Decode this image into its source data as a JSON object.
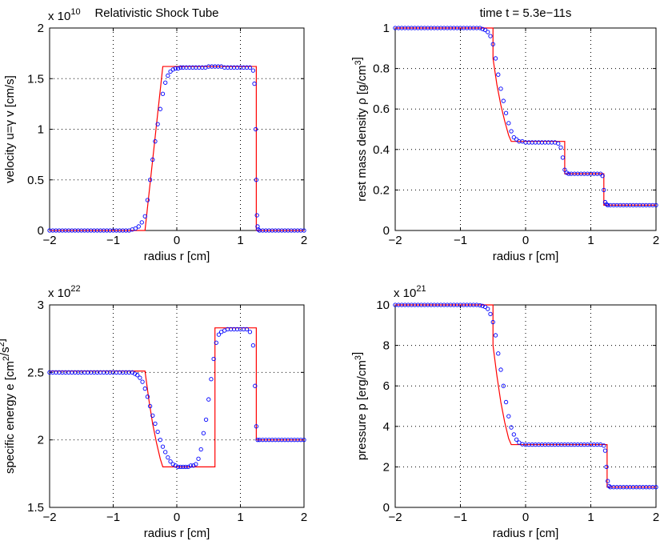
{
  "figure_title_left": "Relativistic Shock Tube",
  "figure_title_right": "time t = 5.3e−11s",
  "colors": {
    "analytic": "#ff0000",
    "numeric": "#0000ff",
    "axes": "#000000",
    "grid": "#000000",
    "background": "#ffffff"
  },
  "chart_data": [
    {
      "id": "velocity",
      "type": "line+scatter",
      "title": "Relativistic Shock Tube",
      "xlabel": "radius r [cm]",
      "ylabel": "velocity u=γ v [cm/s]",
      "xlim": [
        -2,
        2
      ],
      "ylim": [
        0,
        2
      ],
      "xticks": [
        -2,
        -1,
        0,
        1,
        2
      ],
      "xtick_labels": [
        "−2",
        "−1",
        "0",
        "1",
        "2"
      ],
      "yticks": [
        0,
        0.5,
        1,
        1.5,
        2
      ],
      "ytick_labels": [
        "0",
        "0.5",
        "1",
        "1.5",
        "2"
      ],
      "multiplier": {
        "base": "x 10",
        "exp": "10"
      },
      "grid": true,
      "series": [
        {
          "name": "analytic",
          "style": "line",
          "x": [
            -2,
            -0.5,
            -0.22,
            1.25,
            1.25,
            2
          ],
          "y": [
            0,
            0,
            1.62,
            1.62,
            0,
            0
          ]
        },
        {
          "name": "numeric",
          "style": "circle",
          "x": [
            -2,
            -1.95,
            -1.9,
            -1.85,
            -1.8,
            -1.75,
            -1.7,
            -1.65,
            -1.6,
            -1.55,
            -1.5,
            -1.45,
            -1.4,
            -1.35,
            -1.3,
            -1.25,
            -1.2,
            -1.15,
            -1.1,
            -1.05,
            -1.0,
            -0.95,
            -0.9,
            -0.85,
            -0.8,
            -0.75,
            -0.7,
            -0.65,
            -0.6,
            -0.55,
            -0.5,
            -0.46,
            -0.42,
            -0.38,
            -0.34,
            -0.3,
            -0.26,
            -0.22,
            -0.18,
            -0.14,
            -0.1,
            -0.06,
            -0.02,
            0.02,
            0.06,
            0.1,
            0.15,
            0.2,
            0.25,
            0.3,
            0.35,
            0.4,
            0.45,
            0.5,
            0.55,
            0.6,
            0.65,
            0.7,
            0.75,
            0.8,
            0.85,
            0.9,
            0.95,
            1.0,
            1.05,
            1.1,
            1.15,
            1.2,
            1.22,
            1.24,
            1.25,
            1.26,
            1.27,
            1.28,
            1.3,
            1.35,
            1.4,
            1.45,
            1.5,
            1.55,
            1.6,
            1.65,
            1.7,
            1.75,
            1.8,
            1.85,
            1.9,
            1.95,
            2.0
          ],
          "y": [
            0,
            0,
            0,
            0,
            0,
            0,
            0,
            0,
            0,
            0,
            0,
            0,
            0,
            0,
            0,
            0,
            0,
            0,
            0,
            0,
            0,
            0,
            0,
            0,
            0,
            0,
            0.01,
            0.02,
            0.04,
            0.08,
            0.14,
            0.3,
            0.5,
            0.7,
            0.88,
            1.05,
            1.2,
            1.35,
            1.46,
            1.53,
            1.57,
            1.59,
            1.6,
            1.6,
            1.61,
            1.61,
            1.61,
            1.61,
            1.61,
            1.61,
            1.61,
            1.61,
            1.61,
            1.62,
            1.62,
            1.62,
            1.62,
            1.62,
            1.61,
            1.61,
            1.61,
            1.61,
            1.61,
            1.61,
            1.61,
            1.61,
            1.61,
            1.58,
            1.45,
            1.0,
            0.5,
            0.15,
            0.04,
            0.01,
            0,
            0,
            0,
            0,
            0,
            0,
            0,
            0,
            0,
            0,
            0,
            0,
            0,
            0,
            0
          ]
        }
      ]
    },
    {
      "id": "density",
      "type": "line+scatter",
      "title": "time t = 5.3e−11s",
      "xlabel": "radius r [cm]",
      "ylabel": "rest mass density ρ [g/cm³]",
      "xlim": [
        -2,
        2
      ],
      "ylim": [
        0,
        1
      ],
      "xticks": [
        -2,
        -1,
        0,
        1,
        2
      ],
      "xtick_labels": [
        "−2",
        "−1",
        "0",
        "1",
        "2"
      ],
      "yticks": [
        0,
        0.2,
        0.4,
        0.6,
        0.8,
        1
      ],
      "ytick_labels": [
        "0",
        "0.2",
        "0.4",
        "0.6",
        "0.8",
        "1"
      ],
      "grid": true,
      "series": [
        {
          "name": "analytic",
          "style": "line",
          "x": [
            -2,
            -0.5,
            -0.5,
            -0.44,
            -0.38,
            -0.32,
            -0.26,
            -0.22,
            0.6,
            0.6,
            1.2,
            1.2,
            2
          ],
          "y": [
            1,
            1,
            0.85,
            0.72,
            0.62,
            0.54,
            0.47,
            0.44,
            0.44,
            0.28,
            0.28,
            0.125,
            0.125
          ]
        },
        {
          "name": "numeric",
          "style": "circle",
          "x": [
            -2,
            -1.95,
            -1.9,
            -1.85,
            -1.8,
            -1.75,
            -1.7,
            -1.65,
            -1.6,
            -1.55,
            -1.5,
            -1.45,
            -1.4,
            -1.35,
            -1.3,
            -1.25,
            -1.2,
            -1.15,
            -1.1,
            -1.05,
            -1.0,
            -0.95,
            -0.9,
            -0.85,
            -0.8,
            -0.75,
            -0.7,
            -0.66,
            -0.62,
            -0.58,
            -0.54,
            -0.5,
            -0.46,
            -0.42,
            -0.38,
            -0.34,
            -0.3,
            -0.26,
            -0.22,
            -0.18,
            -0.14,
            -0.1,
            -0.05,
            0.0,
            0.05,
            0.1,
            0.15,
            0.2,
            0.25,
            0.3,
            0.35,
            0.4,
            0.45,
            0.5,
            0.54,
            0.57,
            0.6,
            0.63,
            0.66,
            0.7,
            0.75,
            0.8,
            0.85,
            0.9,
            0.95,
            1.0,
            1.05,
            1.1,
            1.15,
            1.18,
            1.2,
            1.22,
            1.24,
            1.26,
            1.3,
            1.35,
            1.4,
            1.45,
            1.5,
            1.55,
            1.6,
            1.65,
            1.7,
            1.75,
            1.8,
            1.85,
            1.9,
            1.95,
            2.0
          ],
          "y": [
            1,
            1,
            1,
            1,
            1,
            1,
            1,
            1,
            1,
            1,
            1,
            1,
            1,
            1,
            1,
            1,
            1,
            1,
            1,
            1,
            1,
            1,
            1,
            1,
            1,
            1,
            1,
            0.995,
            0.99,
            0.98,
            0.96,
            0.92,
            0.85,
            0.77,
            0.7,
            0.64,
            0.58,
            0.53,
            0.49,
            0.46,
            0.45,
            0.44,
            0.44,
            0.435,
            0.435,
            0.435,
            0.435,
            0.435,
            0.435,
            0.435,
            0.435,
            0.435,
            0.435,
            0.43,
            0.41,
            0.36,
            0.3,
            0.285,
            0.28,
            0.28,
            0.28,
            0.28,
            0.28,
            0.28,
            0.28,
            0.28,
            0.28,
            0.28,
            0.28,
            0.27,
            0.2,
            0.14,
            0.13,
            0.125,
            0.125,
            0.125,
            0.125,
            0.125,
            0.125,
            0.125,
            0.125,
            0.125,
            0.125,
            0.125,
            0.125,
            0.125,
            0.125,
            0.125,
            0.125
          ]
        }
      ]
    },
    {
      "id": "energy",
      "type": "line+scatter",
      "title": "",
      "xlabel": "radius r [cm]",
      "ylabel": "specific energy e [cm²/s²]",
      "xlim": [
        -2,
        2
      ],
      "ylim": [
        1.5,
        3
      ],
      "xticks": [
        -2,
        -1,
        0,
        1,
        2
      ],
      "xtick_labels": [
        "−2",
        "−1",
        "0",
        "1",
        "2"
      ],
      "yticks": [
        1.5,
        2,
        2.5,
        3
      ],
      "ytick_labels": [
        "1.5",
        "2",
        "2.5",
        "3"
      ],
      "multiplier": {
        "base": "x 10",
        "exp": "22"
      },
      "grid": true,
      "series": [
        {
          "name": "analytic",
          "style": "line",
          "x": [
            -2,
            -0.5,
            -0.44,
            -0.38,
            -0.32,
            -0.26,
            -0.22,
            0.6,
            0.6,
            1.25,
            1.25,
            2
          ],
          "y": [
            2.51,
            2.51,
            2.3,
            2.12,
            1.98,
            1.86,
            1.8,
            1.8,
            2.83,
            2.83,
            2.0,
            2.0
          ]
        },
        {
          "name": "numeric",
          "style": "circle",
          "x": [
            -2,
            -1.95,
            -1.9,
            -1.85,
            -1.8,
            -1.75,
            -1.7,
            -1.65,
            -1.6,
            -1.55,
            -1.5,
            -1.45,
            -1.4,
            -1.35,
            -1.3,
            -1.25,
            -1.2,
            -1.15,
            -1.1,
            -1.05,
            -1.0,
            -0.95,
            -0.9,
            -0.85,
            -0.8,
            -0.75,
            -0.7,
            -0.66,
            -0.62,
            -0.58,
            -0.54,
            -0.5,
            -0.46,
            -0.42,
            -0.38,
            -0.34,
            -0.3,
            -0.26,
            -0.22,
            -0.18,
            -0.14,
            -0.1,
            -0.06,
            -0.02,
            0.02,
            0.06,
            0.1,
            0.14,
            0.18,
            0.22,
            0.26,
            0.3,
            0.34,
            0.38,
            0.42,
            0.46,
            0.5,
            0.54,
            0.58,
            0.62,
            0.66,
            0.7,
            0.75,
            0.8,
            0.85,
            0.9,
            0.95,
            1.0,
            1.05,
            1.1,
            1.15,
            1.2,
            1.23,
            1.25,
            1.27,
            1.3,
            1.35,
            1.4,
            1.45,
            1.5,
            1.55,
            1.6,
            1.65,
            1.7,
            1.75,
            1.8,
            1.85,
            1.9,
            1.95,
            2.0
          ],
          "y": [
            2.5,
            2.5,
            2.5,
            2.5,
            2.5,
            2.5,
            2.5,
            2.5,
            2.5,
            2.5,
            2.5,
            2.5,
            2.5,
            2.5,
            2.5,
            2.5,
            2.5,
            2.5,
            2.5,
            2.5,
            2.5,
            2.5,
            2.5,
            2.5,
            2.5,
            2.5,
            2.5,
            2.49,
            2.48,
            2.46,
            2.43,
            2.38,
            2.32,
            2.25,
            2.18,
            2.12,
            2.06,
            2.0,
            1.95,
            1.91,
            1.87,
            1.84,
            1.82,
            1.81,
            1.8,
            1.8,
            1.8,
            1.8,
            1.8,
            1.81,
            1.81,
            1.82,
            1.86,
            1.93,
            2.05,
            2.15,
            2.3,
            2.45,
            2.6,
            2.72,
            2.78,
            2.8,
            2.81,
            2.82,
            2.82,
            2.82,
            2.82,
            2.82,
            2.82,
            2.82,
            2.8,
            2.7,
            2.4,
            2.1,
            2.0,
            2.0,
            2.0,
            2.0,
            2.0,
            2.0,
            2.0,
            2.0,
            2.0,
            2.0,
            2.0,
            2.0,
            2.0,
            2.0,
            2.0,
            2.0
          ]
        }
      ]
    },
    {
      "id": "pressure",
      "type": "line+scatter",
      "title": "",
      "xlabel": "radius r [cm]",
      "ylabel": "pressure p [erg/cm³]",
      "xlim": [
        -2,
        2
      ],
      "ylim": [
        0,
        10
      ],
      "xticks": [
        -2,
        -1,
        0,
        1,
        2
      ],
      "xtick_labels": [
        "−2",
        "−1",
        "0",
        "1",
        "2"
      ],
      "yticks": [
        0,
        2,
        4,
        6,
        8,
        10
      ],
      "ytick_labels": [
        "0",
        "2",
        "4",
        "6",
        "8",
        "10"
      ],
      "multiplier": {
        "base": "x 10",
        "exp": "21"
      },
      "grid": true,
      "series": [
        {
          "name": "analytic",
          "style": "line",
          "x": [
            -2,
            -0.5,
            -0.5,
            -0.44,
            -0.38,
            -0.32,
            -0.26,
            -0.22,
            1.25,
            1.25,
            2
          ],
          "y": [
            10,
            10,
            8.0,
            6.5,
            5.2,
            4.2,
            3.4,
            3.1,
            3.1,
            1.0,
            1.0
          ]
        },
        {
          "name": "numeric",
          "style": "circle",
          "x": [
            -2,
            -1.95,
            -1.9,
            -1.85,
            -1.8,
            -1.75,
            -1.7,
            -1.65,
            -1.6,
            -1.55,
            -1.5,
            -1.45,
            -1.4,
            -1.35,
            -1.3,
            -1.25,
            -1.2,
            -1.15,
            -1.1,
            -1.05,
            -1.0,
            -0.95,
            -0.9,
            -0.85,
            -0.8,
            -0.75,
            -0.7,
            -0.66,
            -0.62,
            -0.58,
            -0.54,
            -0.5,
            -0.46,
            -0.42,
            -0.38,
            -0.34,
            -0.3,
            -0.26,
            -0.22,
            -0.18,
            -0.14,
            -0.1,
            -0.05,
            0.0,
            0.05,
            0.1,
            0.15,
            0.2,
            0.25,
            0.3,
            0.35,
            0.4,
            0.45,
            0.5,
            0.55,
            0.6,
            0.65,
            0.7,
            0.75,
            0.8,
            0.85,
            0.9,
            0.95,
            1.0,
            1.05,
            1.1,
            1.15,
            1.2,
            1.22,
            1.24,
            1.26,
            1.28,
            1.3,
            1.35,
            1.4,
            1.45,
            1.5,
            1.55,
            1.6,
            1.65,
            1.7,
            1.75,
            1.8,
            1.85,
            1.9,
            1.95,
            2.0
          ],
          "y": [
            10,
            10,
            10,
            10,
            10,
            10,
            10,
            10,
            10,
            10,
            10,
            10,
            10,
            10,
            10,
            10,
            10,
            10,
            10,
            10,
            10,
            10,
            10,
            10,
            10,
            10,
            9.98,
            9.95,
            9.9,
            9.8,
            9.55,
            9.15,
            8.5,
            7.6,
            6.8,
            6.0,
            5.2,
            4.5,
            3.95,
            3.6,
            3.35,
            3.2,
            3.12,
            3.1,
            3.1,
            3.1,
            3.1,
            3.1,
            3.1,
            3.1,
            3.1,
            3.1,
            3.1,
            3.1,
            3.1,
            3.1,
            3.1,
            3.1,
            3.1,
            3.1,
            3.1,
            3.1,
            3.1,
            3.1,
            3.1,
            3.1,
            3.1,
            3.05,
            2.8,
            2.0,
            1.3,
            1.05,
            1.0,
            1.0,
            1.0,
            1.0,
            1.0,
            1.0,
            1.0,
            1.0,
            1.0,
            1.0,
            1.0,
            1.0,
            1.0,
            1.0,
            1.0
          ]
        }
      ]
    }
  ]
}
